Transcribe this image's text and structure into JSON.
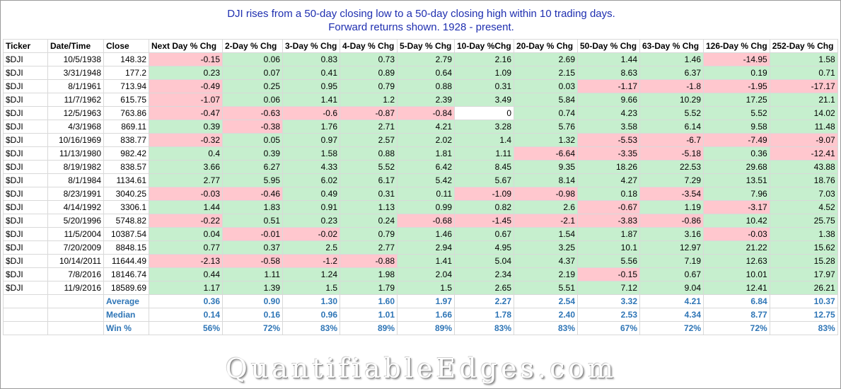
{
  "title_line1": "DJI rises from a 50-day closing low to a 50-day closing high within 10 trading days.",
  "title_line2": "Forward returns shown. 1928 - present.",
  "headers": [
    "Ticker",
    "Date/Time",
    "Close",
    "Next Day % Chg",
    "2-Day % Chg",
    "3-Day % Chg",
    "4-Day % Chg",
    "5-Day % Chg",
    "10-Day %Chg",
    "20-Day % Chg",
    "50-Day % Chg",
    "63-Day % Chg",
    "126-Day % Chg",
    "252-Day % Chg"
  ],
  "rows": [
    {
      "ticker": "$DJI",
      "date": "10/5/1938",
      "close": "148.32",
      "vals": [
        "-0.15",
        "0.06",
        "0.83",
        "0.73",
        "2.79",
        "2.16",
        "2.69",
        "1.44",
        "1.46",
        "-14.95",
        "1.58"
      ]
    },
    {
      "ticker": "$DJI",
      "date": "3/31/1948",
      "close": "177.2",
      "vals": [
        "0.23",
        "0.07",
        "0.41",
        "0.89",
        "0.64",
        "1.09",
        "2.15",
        "8.63",
        "6.37",
        "0.19",
        "0.71"
      ]
    },
    {
      "ticker": "$DJI",
      "date": "8/1/1961",
      "close": "713.94",
      "vals": [
        "-0.49",
        "0.25",
        "0.95",
        "0.79",
        "0.88",
        "0.31",
        "0.03",
        "-1.17",
        "-1.8",
        "-1.95",
        "-17.17"
      ]
    },
    {
      "ticker": "$DJI",
      "date": "11/7/1962",
      "close": "615.75",
      "vals": [
        "-1.07",
        "0.06",
        "1.41",
        "1.2",
        "2.39",
        "3.49",
        "5.84",
        "9.66",
        "10.29",
        "17.25",
        "21.1"
      ]
    },
    {
      "ticker": "$DJI",
      "date": "12/5/1963",
      "close": "763.86",
      "vals": [
        "-0.47",
        "-0.63",
        "-0.6",
        "-0.87",
        "-0.84",
        "0",
        "0.74",
        "4.23",
        "5.52",
        "5.52",
        "14.02"
      ]
    },
    {
      "ticker": "$DJI",
      "date": "4/3/1968",
      "close": "869.11",
      "vals": [
        "0.39",
        "-0.38",
        "1.76",
        "2.71",
        "4.21",
        "3.28",
        "5.76",
        "3.58",
        "6.14",
        "9.58",
        "11.48"
      ]
    },
    {
      "ticker": "$DJI",
      "date": "10/16/1969",
      "close": "838.77",
      "vals": [
        "-0.32",
        "0.05",
        "0.97",
        "2.57",
        "2.02",
        "1.4",
        "1.32",
        "-5.53",
        "-6.7",
        "-7.49",
        "-9.07"
      ]
    },
    {
      "ticker": "$DJI",
      "date": "11/13/1980",
      "close": "982.42",
      "vals": [
        "0.4",
        "0.39",
        "1.58",
        "0.88",
        "1.81",
        "1.11",
        "-6.64",
        "-3.35",
        "-5.18",
        "0.36",
        "-12.41"
      ]
    },
    {
      "ticker": "$DJI",
      "date": "8/19/1982",
      "close": "838.57",
      "vals": [
        "3.66",
        "6.27",
        "4.33",
        "5.52",
        "6.42",
        "8.45",
        "9.35",
        "18.26",
        "22.53",
        "29.68",
        "43.88"
      ]
    },
    {
      "ticker": "$DJI",
      "date": "8/1/1984",
      "close": "1134.61",
      "vals": [
        "2.77",
        "5.95",
        "6.02",
        "6.17",
        "5.42",
        "5.67",
        "8.14",
        "4.27",
        "7.29",
        "13.51",
        "18.76"
      ]
    },
    {
      "ticker": "$DJI",
      "date": "8/23/1991",
      "close": "3040.25",
      "vals": [
        "-0.03",
        "-0.46",
        "0.49",
        "0.31",
        "0.11",
        "-1.09",
        "-0.98",
        "0.18",
        "-3.54",
        "7.96",
        "7.03"
      ]
    },
    {
      "ticker": "$DJI",
      "date": "4/14/1992",
      "close": "3306.1",
      "vals": [
        "1.44",
        "1.83",
        "0.91",
        "1.13",
        "0.99",
        "0.82",
        "2.6",
        "-0.67",
        "1.19",
        "-3.17",
        "4.52"
      ]
    },
    {
      "ticker": "$DJI",
      "date": "5/20/1996",
      "close": "5748.82",
      "vals": [
        "-0.22",
        "0.51",
        "0.23",
        "0.24",
        "-0.68",
        "-1.45",
        "-2.1",
        "-3.83",
        "-0.86",
        "10.42",
        "25.75"
      ]
    },
    {
      "ticker": "$DJI",
      "date": "11/5/2004",
      "close": "10387.54",
      "vals": [
        "0.04",
        "-0.01",
        "-0.02",
        "0.79",
        "1.46",
        "0.67",
        "1.54",
        "1.87",
        "3.16",
        "-0.03",
        "1.38"
      ]
    },
    {
      "ticker": "$DJI",
      "date": "7/20/2009",
      "close": "8848.15",
      "vals": [
        "0.77",
        "0.37",
        "2.5",
        "2.77",
        "2.94",
        "4.95",
        "3.25",
        "10.1",
        "12.97",
        "21.22",
        "15.62"
      ]
    },
    {
      "ticker": "$DJI",
      "date": "10/14/2011",
      "close": "11644.49",
      "vals": [
        "-2.13",
        "-0.58",
        "-1.2",
        "-0.88",
        "1.41",
        "5.04",
        "4.37",
        "5.56",
        "7.19",
        "12.63",
        "15.28"
      ]
    },
    {
      "ticker": "$DJI",
      "date": "7/8/2016",
      "close": "18146.74",
      "vals": [
        "0.44",
        "1.11",
        "1.24",
        "1.98",
        "2.04",
        "2.34",
        "2.19",
        "-0.15",
        "0.67",
        "10.01",
        "17.97"
      ]
    },
    {
      "ticker": "$DJI",
      "date": "11/9/2016",
      "close": "18589.69",
      "vals": [
        "1.17",
        "1.39",
        "1.5",
        "1.79",
        "1.5",
        "2.65",
        "5.51",
        "7.12",
        "9.04",
        "12.41",
        "26.21"
      ]
    }
  ],
  "summary": [
    {
      "label": "Average",
      "vals": [
        "0.36",
        "0.90",
        "1.30",
        "1.60",
        "1.97",
        "2.27",
        "2.54",
        "3.32",
        "4.21",
        "6.84",
        "10.37"
      ]
    },
    {
      "label": "Median",
      "vals": [
        "0.14",
        "0.16",
        "0.96",
        "1.01",
        "1.66",
        "1.78",
        "2.40",
        "2.53",
        "4.34",
        "8.77",
        "12.75"
      ]
    },
    {
      "label": "Win %",
      "vals": [
        "56%",
        "72%",
        "83%",
        "89%",
        "89%",
        "83%",
        "83%",
        "67%",
        "72%",
        "72%",
        "83%"
      ]
    }
  ],
  "colors": {
    "positive": "#c6efce",
    "negative": "#ffc7ce",
    "title": "#1f2fb0",
    "summary": "#2e75b6"
  },
  "watermark": "QuantifiableEdges.com"
}
